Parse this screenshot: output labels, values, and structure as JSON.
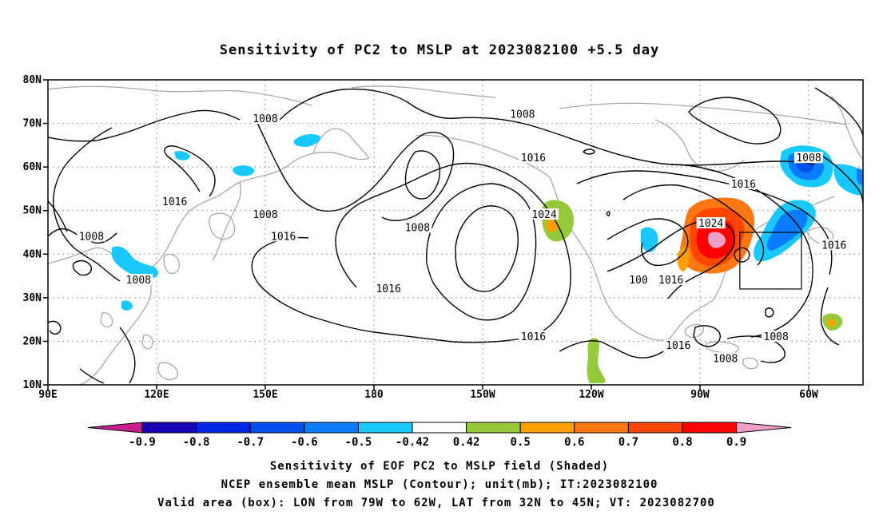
{
  "title": "Sensitivity of PC2 to MSLP at 2023082100 +5.5 day",
  "map": {
    "lat_ticks": [
      "80N",
      "70N",
      "60N",
      "50N",
      "40N",
      "30N",
      "20N",
      "10N"
    ],
    "lon_ticks": [
      "90E",
      "120E",
      "150E",
      "180",
      "150W",
      "120W",
      "90W",
      "60W"
    ],
    "lat_range": [
      10,
      80
    ],
    "lon_range_east": [
      90,
      315
    ],
    "grid": "dotted",
    "box": {
      "lon": [
        -79,
        -62
      ],
      "lat": [
        32,
        45
      ]
    },
    "contour_labels": [
      {
        "text": "1008",
        "lon": 150,
        "lat": 71
      },
      {
        "text": "1008",
        "lon": 221,
        "lat": 72
      },
      {
        "text": "1016",
        "lon": 224,
        "lat": 62
      },
      {
        "text": "1008",
        "lon": 300,
        "lat": 62
      },
      {
        "text": "1016",
        "lon": 282,
        "lat": 56
      },
      {
        "text": "1016",
        "lon": 125,
        "lat": 52
      },
      {
        "text": "1008",
        "lon": 150,
        "lat": 49
      },
      {
        "text": "1024",
        "lon": 227,
        "lat": 49
      },
      {
        "text": "1008",
        "lon": 102,
        "lat": 44
      },
      {
        "text": "1016",
        "lon": 155,
        "lat": 44
      },
      {
        "text": "1008",
        "lon": 192,
        "lat": 46
      },
      {
        "text": "1024",
        "lon": 273,
        "lat": 47
      },
      {
        "text": "1016",
        "lon": 307,
        "lat": 42
      },
      {
        "text": "1008",
        "lon": 115,
        "lat": 34
      },
      {
        "text": "1016",
        "lon": 184,
        "lat": 32
      },
      {
        "text": "100",
        "lon": 253,
        "lat": 34
      },
      {
        "text": "1016",
        "lon": 262,
        "lat": 34
      },
      {
        "text": "1016",
        "lon": 224,
        "lat": 21
      },
      {
        "text": "1016",
        "lon": 264,
        "lat": 19
      },
      {
        "text": "1008",
        "lon": 277,
        "lat": 16
      },
      {
        "text": "1008",
        "lon": 291,
        "lat": 21
      }
    ]
  },
  "colorbar": {
    "labels": [
      "-0.9",
      "-0.8",
      "-0.7",
      "-0.6",
      "-0.5",
      "-0.42",
      "0.42",
      "0.5",
      "0.6",
      "0.7",
      "0.8",
      "0.9"
    ],
    "colors": [
      "#1a00b4",
      "#0028e6",
      "#0050f0",
      "#0a7cff",
      "#19c8ff",
      "#ffffff",
      "#96c83c",
      "#ffa000",
      "#ff7814",
      "#ff4600",
      "#ff0000"
    ],
    "low_color": "#c81e8c",
    "high_color": "#f0a0c8"
  },
  "caption": [
    "Sensitivity of EOF PC2 to MSLP field (Shaded)",
    "NCEP ensemble mean MSLP (Contour); unit(mb); IT:2023082100",
    "Valid area (box): LON from 79W to 62W, LAT from 32N to 45N; VT: 2023082700"
  ]
}
